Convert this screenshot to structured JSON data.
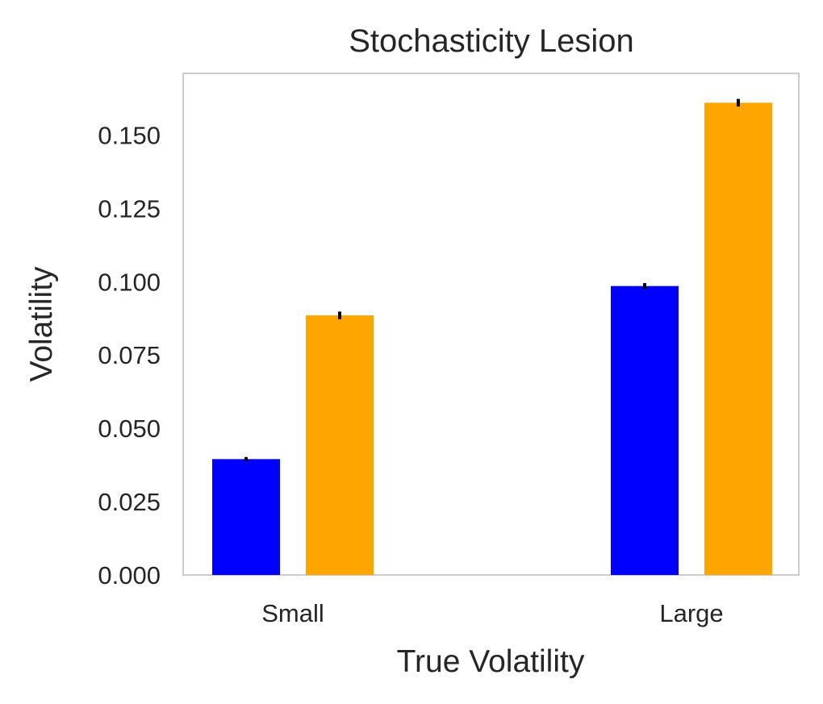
{
  "chart_data": {
    "type": "bar",
    "title": "Stochasticity Lesion",
    "xlabel": "True Volatility",
    "ylabel": "Volatility",
    "categories": [
      "Small",
      "Large"
    ],
    "series": [
      {
        "color": "#0000ff",
        "values": [
          0.0395,
          0.0985
        ],
        "errors": [
          0.0007,
          0.001
        ]
      },
      {
        "color": "#ffa500",
        "values": [
          0.0885,
          0.161
        ],
        "errors": [
          0.0013,
          0.0013
        ]
      }
    ],
    "ylim": [
      0,
      0.171
    ],
    "yticks": [
      "0.000",
      "0.025",
      "0.050",
      "0.075",
      "0.100",
      "0.125",
      "0.150"
    ],
    "ytick_values": [
      0,
      0.025,
      0.05,
      0.075,
      0.1,
      0.125,
      0.15
    ],
    "grid": false,
    "legend": "none",
    "frame_color": "#cccccc",
    "error_color": "#000000"
  }
}
